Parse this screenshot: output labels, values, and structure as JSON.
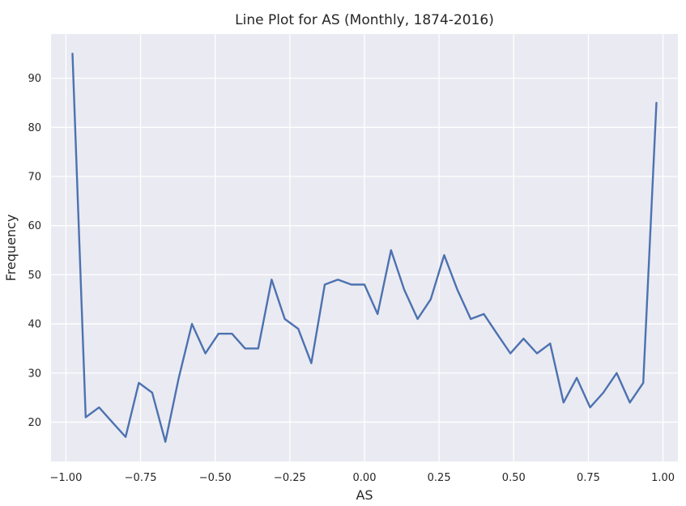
{
  "chart_data": {
    "type": "line",
    "title": "Line Plot for AS (Monthly, 1874-2016)",
    "xlabel": "AS",
    "ylabel": "Frequency",
    "xlim": [
      -1.05,
      1.05
    ],
    "ylim": [
      12,
      99
    ],
    "xticks": [
      -1.0,
      -0.75,
      -0.5,
      -0.25,
      0.0,
      0.25,
      0.5,
      0.75,
      1.0
    ],
    "xtick_labels": [
      "−1.00",
      "−0.75",
      "−0.50",
      "−0.25",
      "0.00",
      "0.25",
      "0.50",
      "0.75",
      "1.00"
    ],
    "yticks": [
      20,
      30,
      40,
      50,
      60,
      70,
      80,
      90
    ],
    "ytick_labels": [
      "20",
      "30",
      "40",
      "50",
      "60",
      "70",
      "80",
      "90"
    ],
    "grid": true,
    "legend": "none",
    "colors": {
      "line": "#4c72b0",
      "background": "#eaeaf2",
      "grid": "#ffffff"
    },
    "series": [
      {
        "x": [
          -0.978,
          -0.934,
          -0.889,
          -0.845,
          -0.8,
          -0.756,
          -0.711,
          -0.667,
          -0.622,
          -0.578,
          -0.533,
          -0.489,
          -0.444,
          -0.4,
          -0.356,
          -0.311,
          -0.267,
          -0.222,
          -0.178,
          -0.133,
          -0.089,
          -0.044,
          0.0,
          0.044,
          0.089,
          0.133,
          0.178,
          0.222,
          0.267,
          0.311,
          0.356,
          0.4,
          0.444,
          0.489,
          0.533,
          0.578,
          0.622,
          0.667,
          0.711,
          0.756,
          0.8,
          0.845,
          0.889,
          0.934,
          0.978
        ],
        "values": [
          95,
          21,
          23,
          20,
          17,
          28,
          26,
          16,
          29,
          40,
          34,
          38,
          38,
          35,
          35,
          49,
          41,
          39,
          32,
          48,
          49,
          48,
          48,
          42,
          55,
          47,
          41,
          45,
          54,
          47,
          41,
          42,
          38,
          34,
          37,
          34,
          36,
          24,
          29,
          23,
          26,
          30,
          24,
          28,
          85
        ]
      }
    ]
  }
}
